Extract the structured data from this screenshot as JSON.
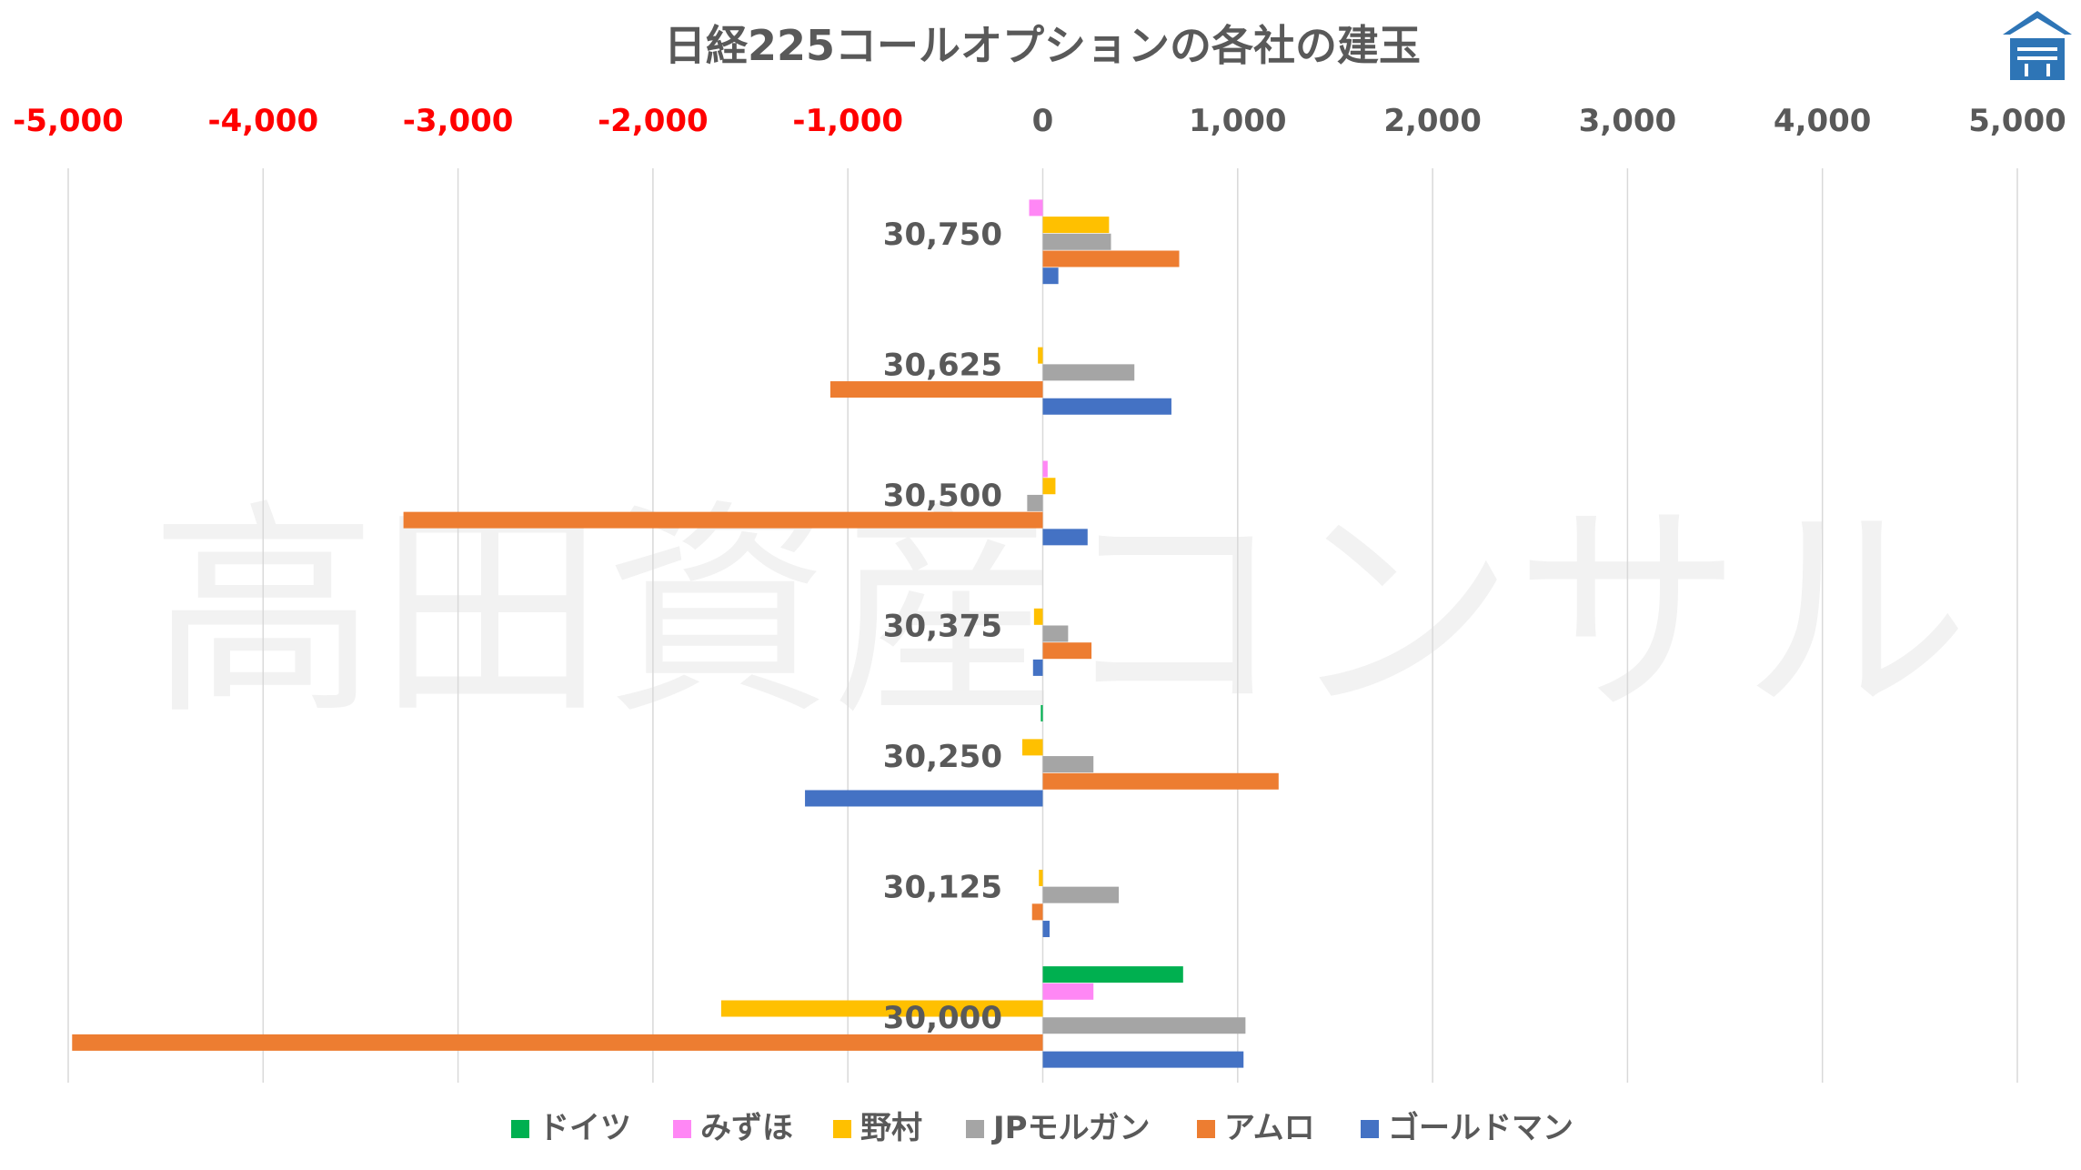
{
  "chart_data": {
    "type": "bar",
    "orientation": "horizontal",
    "title": "日経225コールオプションの各社の建玉",
    "watermark": "高田資産コンサル",
    "xlim": [
      -5000,
      5000
    ],
    "x_ticks": [
      -5000,
      -4000,
      -3000,
      -2000,
      -1000,
      0,
      1000,
      2000,
      3000,
      4000,
      5000
    ],
    "x_tick_labels": [
      "-5,000",
      "-4,000",
      "-3,000",
      "-2,000",
      "-1,000",
      "0",
      "1,000",
      "2,000",
      "3,000",
      "4,000",
      "5,000"
    ],
    "negative_tick_color": "#ff0000",
    "positive_tick_color": "#595959",
    "grid": true,
    "legend_position": "bottom",
    "categories": [
      "30,750",
      "30,625",
      "30,500",
      "30,375",
      "30,250",
      "30,125",
      "30,000"
    ],
    "series": [
      {
        "name": "ドイツ",
        "color": "#00b050",
        "values": [
          0,
          0,
          0,
          0,
          -10,
          0,
          720
        ]
      },
      {
        "name": "みずほ",
        "color": "#ff87f5",
        "values": [
          -70,
          0,
          25,
          0,
          0,
          0,
          260
        ]
      },
      {
        "name": "野村",
        "color": "#ffc000",
        "values": [
          340,
          -25,
          65,
          -45,
          -105,
          -20,
          -1650
        ]
      },
      {
        "name": "JPモルガン",
        "color": "#a5a5a5",
        "values": [
          350,
          470,
          -80,
          130,
          260,
          390,
          1040
        ]
      },
      {
        "name": "アムロ",
        "color": "#ed7d31",
        "values": [
          700,
          -1090,
          -3280,
          250,
          1210,
          -55,
          -4980
        ]
      },
      {
        "name": "ゴールドマン",
        "color": "#4472c4",
        "values": [
          80,
          660,
          230,
          -50,
          -1220,
          35,
          1030
        ]
      }
    ]
  },
  "logo": {
    "name": "company-logo",
    "color": "#2e75b6"
  }
}
